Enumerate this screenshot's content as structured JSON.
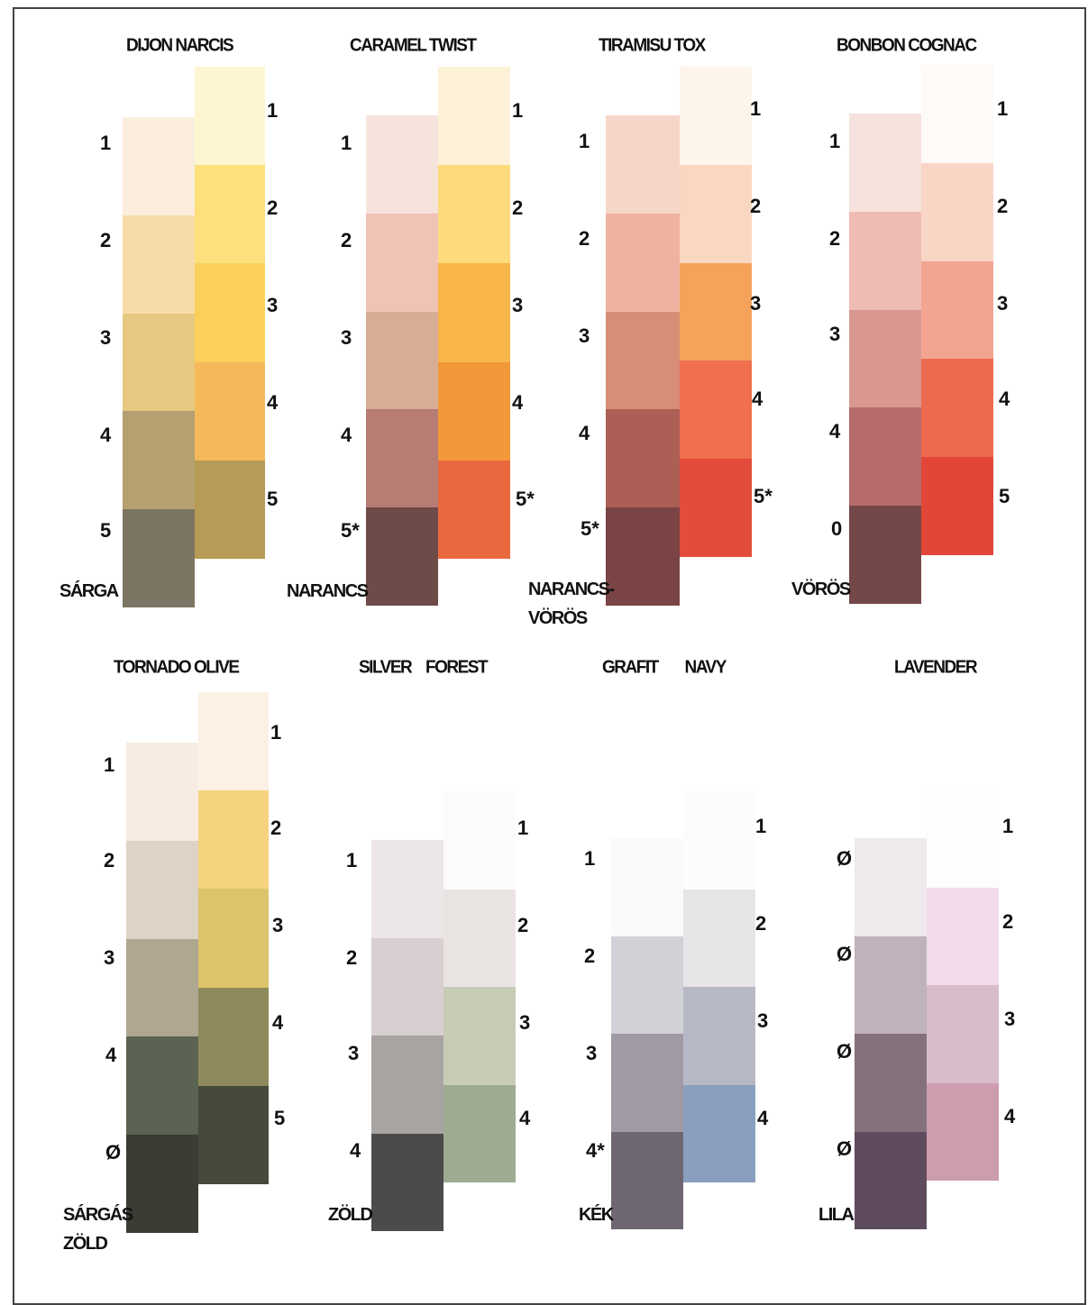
{
  "groups": [
    {
      "title": "DIJON NARCIS",
      "category": [
        "SÁRGA"
      ],
      "left": {
        "labels": [
          "1",
          "2",
          "3",
          "4",
          "5"
        ],
        "colors": [
          "#fbeedd",
          "#f7dcaa",
          "#e6c880",
          "#b4a070",
          "#7c7563"
        ]
      },
      "right": {
        "labels": [
          "1",
          "2",
          "3",
          "4",
          "5"
        ],
        "colors": [
          "#fef6d0",
          "#fde07c",
          "#fbd05a",
          "#f5b95a",
          "#b59b55"
        ]
      }
    },
    {
      "title": "CARAMEL TWIST",
      "category": [
        "NARANCS"
      ],
      "left": {
        "labels": [
          "1",
          "2",
          "3",
          "4",
          "5*"
        ],
        "colors": [
          "#f5e3dc",
          "#f0c4b5",
          "#d7ad95",
          "#b77c74",
          "#6e4a48"
        ]
      },
      "right": {
        "labels": [
          "1",
          "2",
          "3",
          "4",
          "5*"
        ],
        "colors": [
          "#fdf2d8",
          "#fddb7c",
          "#f8b64a",
          "#f2983a",
          "#e9693e"
        ]
      }
    },
    {
      "title": "TIRAMISU TOX",
      "category": [
        "NARANCS-",
        "VÖRÖS"
      ],
      "left": {
        "labels": [
          "1",
          "2",
          "3",
          "4",
          "5*"
        ],
        "colors": [
          "#f6d6c8",
          "#f0b2a0",
          "#d78d76",
          "#ad5e55",
          "#7a4444"
        ]
      },
      "right": {
        "labels": [
          "1",
          "2",
          "3",
          "4",
          "5*"
        ],
        "colors": [
          "#fdf5ec",
          "#f9d7c0",
          "#f5a25a",
          "#ef6f4e",
          "#e34b3b"
        ]
      }
    },
    {
      "title": "BONBON COGNAC",
      "category": [
        "VÖRÖS"
      ],
      "left": {
        "labels": [
          "1",
          "2",
          "3",
          "4",
          "0"
        ],
        "colors": [
          "#f6e2dc",
          "#efbcb3",
          "#d89891",
          "#b76b6b",
          "#744848"
        ]
      },
      "right": {
        "labels": [
          "1",
          "2",
          "3",
          "4",
          "5"
        ],
        "colors": [
          "#fdfaf8",
          "#f9d5c6",
          "#f3a592",
          "#ee6a4e",
          "#e24638"
        ]
      }
    },
    {
      "title": "TORNADO OLIVE",
      "category": [
        "SÁRGÁS",
        "ZÖLD"
      ],
      "left": {
        "labels": [
          "1",
          "2",
          "3",
          "4",
          "Ø"
        ],
        "colors": [
          "#f6ece3",
          "#ddd4c6",
          "#b0a790",
          "#5b6352",
          "#393d33"
        ]
      },
      "right": {
        "labels": [
          "1",
          "2",
          "3",
          "4",
          "5"
        ],
        "colors": [
          "#fbf1e4",
          "#f6d37e",
          "#dcc46c",
          "#8e8a5b",
          "#454a3a"
        ]
      }
    },
    {
      "title": "SILVER FOREST",
      "category": [
        "ZÖLD"
      ],
      "left": {
        "labels": [
          "1",
          "2",
          "3",
          "4"
        ],
        "colors": [
          "#ece6e8",
          "#d8d0d0",
          "#a8a4a2",
          "#4c4a4c"
        ]
      },
      "right": {
        "labels": [
          "1",
          "2",
          "3",
          "4"
        ],
        "colors": [
          "#fcfbfa",
          "#e9e4e2",
          "#c8cbb6",
          "#9eaa92"
        ]
      }
    },
    {
      "title": "GRAFIT NAVY",
      "category": [
        "KÉK"
      ],
      "left": {
        "labels": [
          "1",
          "2",
          "3",
          "4*"
        ],
        "colors": [
          "#fbfafb",
          "#d3d1d8",
          "#9f9aa4",
          "#6e6670"
        ]
      },
      "right": {
        "labels": [
          "1",
          "2",
          "3",
          "4"
        ],
        "colors": [
          "#fdfcfc",
          "#e8e5e9",
          "#b6b9c5",
          "#8a9ec0"
        ]
      }
    },
    {
      "title": "LAVENDER",
      "category": [
        "LILA"
      ],
      "left": {
        "labels": [
          "Ø",
          "Ø",
          "Ø",
          "Ø"
        ],
        "colors": [
          "#efe9ee",
          "#bfb2ba",
          "#85717e",
          "#5e4c5e"
        ]
      },
      "right": {
        "labels": [
          "1",
          "2",
          "3",
          "4"
        ],
        "colors": [
          "#fdfdfd",
          "#f2dcec",
          "#d8bccb",
          "#cd9cae"
        ]
      }
    }
  ]
}
